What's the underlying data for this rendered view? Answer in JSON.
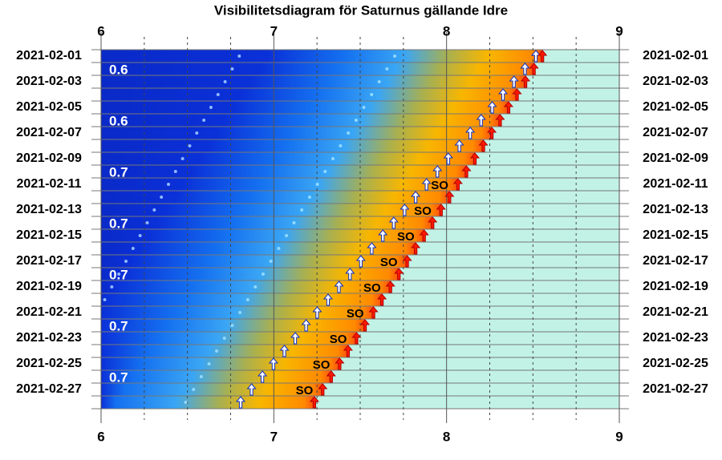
{
  "chart_data": {
    "type": "visibility",
    "title": "Visibilitetsdiagram för Saturnus gällande Idre",
    "xlim": [
      6,
      9
    ],
    "xticks": [
      6,
      7,
      8,
      9
    ],
    "xminorticks": [
      6.25,
      6.5,
      6.75,
      7.25,
      7.5,
      7.75,
      8.25,
      8.5,
      8.75
    ],
    "categories": [
      "2021-02-01",
      null,
      "2021-02-03",
      null,
      "2021-02-05",
      null,
      "2021-02-07",
      null,
      "2021-02-09",
      null,
      "2021-02-11",
      null,
      "2021-02-13",
      null,
      "2021-02-15",
      null,
      "2021-02-17",
      null,
      "2021-02-19",
      null,
      "2021-02-21",
      null,
      "2021-02-23",
      null,
      "2021-02-25",
      null,
      "2021-02-27",
      null
    ],
    "series": [
      {
        "name": "sunrise",
        "color": "#ff1a00",
        "values": [
          8.555,
          8.506,
          8.457,
          8.408,
          8.359,
          8.31,
          8.262,
          8.213,
          8.164,
          8.115,
          8.066,
          8.017,
          7.968,
          7.919,
          7.87,
          7.821,
          7.772,
          7.724,
          7.675,
          7.626,
          7.577,
          7.528,
          7.479,
          7.43,
          7.381,
          7.332,
          7.283,
          7.235
        ]
      },
      {
        "name": "saturn-rise",
        "color": "#ffffff",
        "values": [
          8.517,
          8.454,
          8.39,
          8.327,
          8.264,
          8.2,
          8.137,
          8.074,
          8.01,
          7.947,
          7.884,
          7.821,
          7.757,
          7.694,
          7.631,
          7.567,
          7.504,
          7.441,
          7.377,
          7.314,
          7.251,
          7.187,
          7.124,
          7.061,
          6.998,
          6.934,
          6.871,
          6.808
        ]
      },
      {
        "name": "twilight-early",
        "color": "#8fb8ff",
        "values": [
          6.8,
          6.759,
          6.718,
          6.677,
          6.636,
          6.595,
          6.554,
          6.513,
          6.472,
          6.431,
          6.39,
          6.349,
          6.308,
          6.267,
          6.226,
          6.185,
          6.144,
          6.103,
          6.062,
          6.021,
          null,
          null,
          null,
          null,
          null,
          null,
          null,
          null
        ]
      },
      {
        "name": "twilight-late",
        "color": "#8fd8ff",
        "values": [
          7.7,
          7.655,
          7.61,
          7.566,
          7.521,
          7.476,
          7.431,
          7.386,
          7.342,
          7.297,
          7.252,
          7.207,
          7.162,
          7.117,
          7.073,
          7.028,
          6.983,
          6.938,
          6.893,
          6.849,
          6.804,
          6.759,
          6.714,
          6.669,
          6.625,
          6.58,
          6.535,
          6.49
        ]
      }
    ],
    "annotation": "SO",
    "annotation_rows": [
      10,
      12,
      14,
      16,
      18,
      20,
      22,
      24,
      26
    ],
    "magnitude_rows": [
      1,
      5,
      9,
      13,
      17,
      21,
      25
    ],
    "magnitudes": [
      0.6,
      0.6,
      0.7,
      0.7,
      0.7,
      0.7,
      0.7
    ],
    "grid": true
  }
}
